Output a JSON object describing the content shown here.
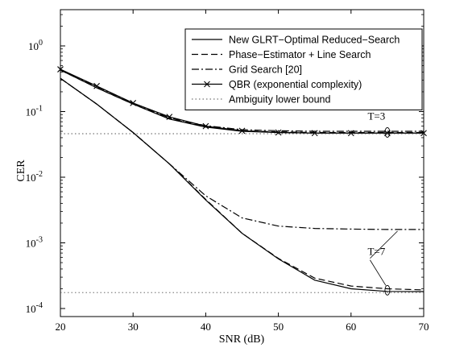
{
  "chart_data": {
    "type": "line",
    "xlabel": "SNR (dB)",
    "ylabel": "CER",
    "xlim": [
      20,
      70
    ],
    "ylim": [
      0.0001,
      1
    ],
    "yscale": "log",
    "grid": false,
    "legend_position": "top-right",
    "x_ticks": [
      "20",
      "30",
      "40",
      "50",
      "60",
      "70"
    ],
    "y_ticks": [
      {
        "base": "10",
        "exp": "-4",
        "value": 0.0001
      },
      {
        "base": "10",
        "exp": "-3",
        "value": 0.001
      },
      {
        "base": "10",
        "exp": "-2",
        "value": 0.01
      },
      {
        "base": "10",
        "exp": "-1",
        "value": 0.1
      },
      {
        "base": "10",
        "exp": "0",
        "value": 1
      }
    ],
    "x": [
      20,
      25,
      30,
      35,
      40,
      45,
      50,
      55,
      60,
      65,
      70
    ],
    "series": [
      {
        "name": "New GLRT−Optimal Reduced−Search",
        "style": "solid",
        "group": "T=3",
        "values": [
          0.43,
          0.23,
          0.13,
          0.077,
          0.058,
          0.05,
          0.048,
          0.047,
          0.047,
          0.047,
          0.047
        ]
      },
      {
        "name": "Phase−Estimator + Line Search",
        "style": "dashed",
        "group": "T=3",
        "values": [
          0.43,
          0.23,
          0.13,
          0.078,
          0.059,
          0.051,
          0.049,
          0.048,
          0.048,
          0.048,
          0.048
        ]
      },
      {
        "name": "Grid Search [20]",
        "style": "dashdot",
        "group": "T=3",
        "values": [
          0.44,
          0.24,
          0.135,
          0.08,
          0.061,
          0.053,
          0.051,
          0.05,
          0.05,
          0.05,
          0.05
        ]
      },
      {
        "name": "QBR (exponential complexity)",
        "style": "solid-x",
        "group": "T=3",
        "values": [
          0.44,
          0.245,
          0.135,
          0.083,
          0.06,
          0.051,
          0.048,
          0.047,
          0.047,
          0.047,
          0.047
        ]
      },
      {
        "name": "Ambiguity lower bound",
        "style": "dotted",
        "group": "T=3",
        "values": [
          0.046,
          0.046,
          0.046,
          0.046,
          0.046,
          0.046,
          0.046,
          0.046,
          0.046,
          0.046,
          0.046
        ]
      },
      {
        "style": "solid",
        "group": "T=7",
        "values": [
          0.32,
          0.13,
          0.048,
          0.016,
          0.0045,
          0.0014,
          0.00057,
          0.00027,
          0.0002,
          0.000182,
          0.000181
        ]
      },
      {
        "style": "dashed",
        "group": "T=7",
        "values": [
          0.32,
          0.13,
          0.048,
          0.016,
          0.0046,
          0.0014,
          0.00058,
          0.00029,
          0.00022,
          0.0002,
          0.000192
        ]
      },
      {
        "style": "dashdot",
        "group": "T=7",
        "values": [
          0.32,
          0.13,
          0.048,
          0.016,
          0.0052,
          0.0024,
          0.0018,
          0.00166,
          0.00162,
          0.0016,
          0.0016
        ]
      },
      {
        "style": "dotted",
        "group": "T=7",
        "values": [
          0.000175,
          0.000175,
          0.000175,
          0.000175,
          0.000175,
          0.000175,
          0.000175,
          0.000175,
          0.000175,
          0.000175,
          0.000175
        ]
      }
    ],
    "annotations": [
      {
        "text": "T=3",
        "x": 63.5,
        "y": 0.075
      },
      {
        "text": "T=7",
        "x": 63.5,
        "y": 0.00065
      }
    ]
  }
}
